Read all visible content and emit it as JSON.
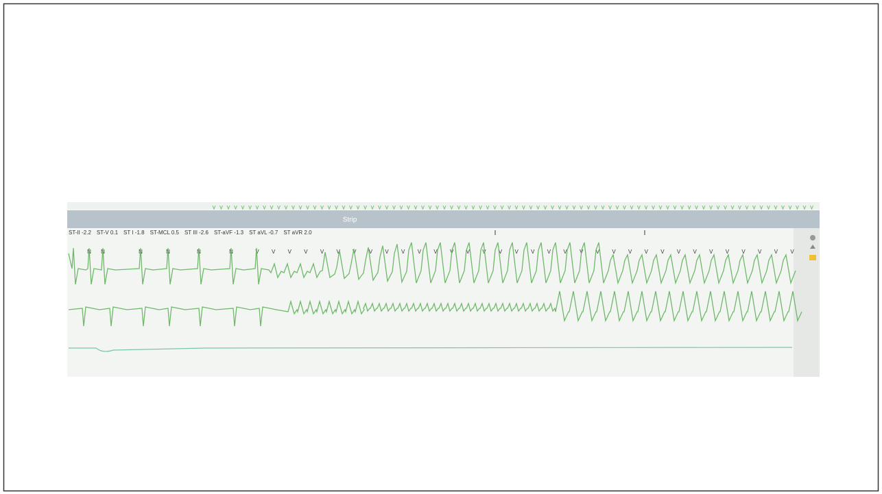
{
  "window": {
    "title": "Strip",
    "st_readout": [
      "ST-II -2.2",
      "ST-V 0.1",
      "ST I -1.8",
      "ST-MCL 0.5",
      "ST III -2.6",
      "ST-aVF -1.3",
      "ST aVL -0.7",
      "ST aVR 2.0"
    ],
    "beat_labels": [
      "N",
      "N",
      "N",
      "N",
      "N",
      "N",
      "V",
      "V",
      "V",
      "V",
      "V",
      "V",
      "V",
      "V",
      "V",
      "V",
      "V",
      "V",
      "V",
      "V",
      "V",
      "V",
      "V",
      "V",
      "V",
      "V",
      "V",
      "V",
      "V",
      "V",
      "V",
      "V",
      "V",
      "V",
      "V",
      "V",
      "V",
      "V",
      "V",
      "V"
    ]
  }
}
